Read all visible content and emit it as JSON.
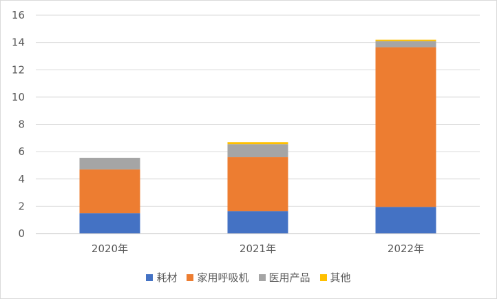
{
  "chart_data": {
    "type": "bar",
    "stacked": true,
    "title": "",
    "xlabel": "",
    "ylabel": "",
    "ylim": [
      0,
      16
    ],
    "yticks": [
      0,
      2,
      4,
      6,
      8,
      10,
      12,
      14,
      16
    ],
    "grid": true,
    "legend_position": "bottom",
    "categories": [
      "2020年",
      "2021年",
      "2022年"
    ],
    "series": [
      {
        "name": "耗材",
        "color": "#4472C4",
        "values": [
          1.5,
          1.65,
          1.95
        ]
      },
      {
        "name": "家用呼吸机",
        "color": "#ED7D31",
        "values": [
          3.2,
          3.95,
          11.7
        ]
      },
      {
        "name": "医用产品",
        "color": "#A5A5A5",
        "values": [
          0.85,
          0.95,
          0.45
        ]
      },
      {
        "name": "其他",
        "color": "#FFC000",
        "values": [
          0.0,
          0.15,
          0.1
        ]
      }
    ]
  }
}
